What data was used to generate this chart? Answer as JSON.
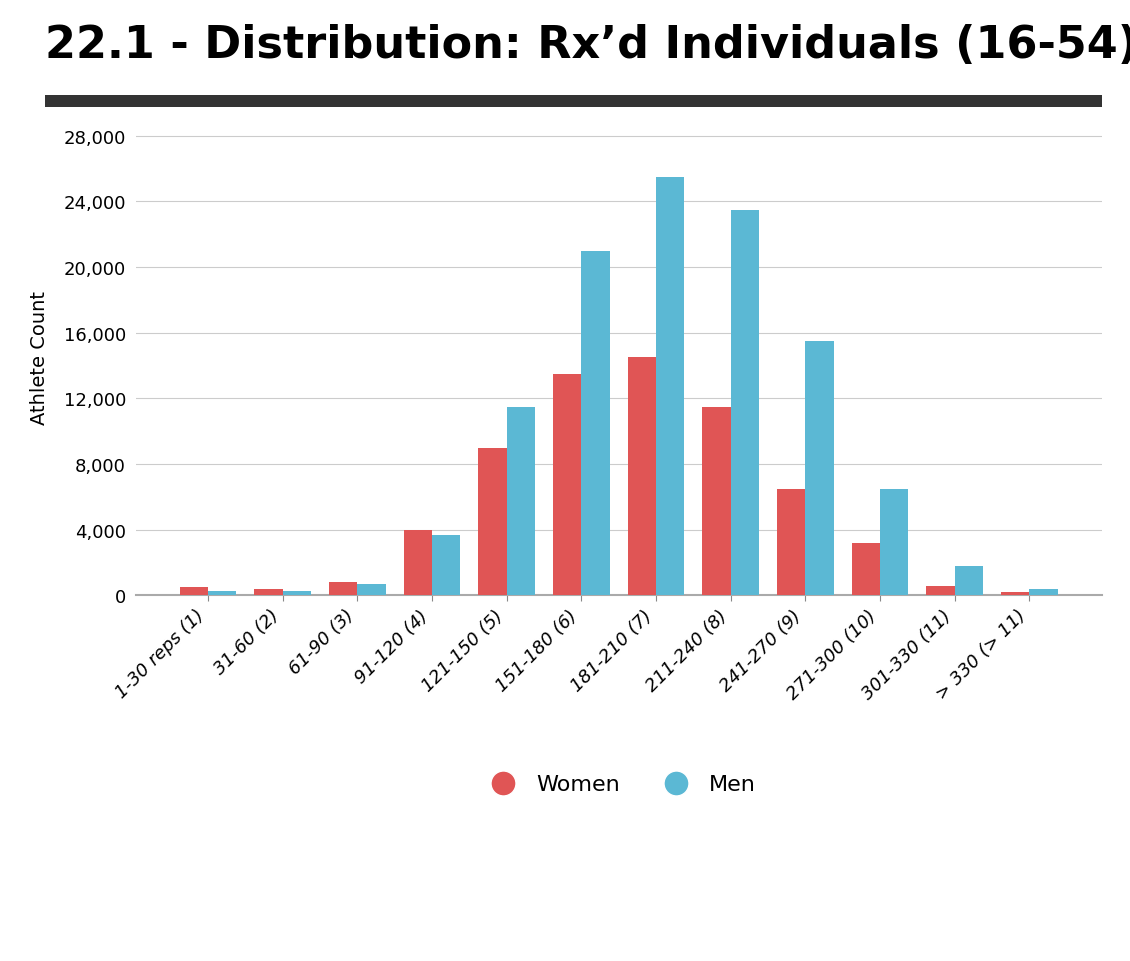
{
  "title": "22.1 - Distribution: Rx’d Individuals (16-54)",
  "ylabel": "Athlete Count",
  "categories": [
    "1-30 reps (1)",
    "31-60 (2)",
    "61-90 (3)",
    "91-120 (4)",
    "121-150 (5)",
    "151-180 (6)",
    "181-210 (7)",
    "211-240 (8)",
    "241-270 (9)",
    "271-300 (10)",
    "301-330 (11)",
    "> 330 (> 11)"
  ],
  "women_values": [
    500,
    400,
    800,
    4000,
    9000,
    13500,
    14500,
    11500,
    6500,
    3200,
    600,
    200
  ],
  "men_values": [
    300,
    300,
    700,
    3700,
    11500,
    21000,
    25500,
    23500,
    15500,
    6500,
    1800,
    400
  ],
  "women_color": "#E05555",
  "men_color": "#5BB8D4",
  "background_color": "#FFFFFF",
  "title_fontsize": 32,
  "ylabel_fontsize": 14,
  "tick_fontsize": 13,
  "ylim": [
    0,
    29000
  ],
  "yticks": [
    0,
    4000,
    8000,
    12000,
    16000,
    20000,
    24000,
    28000
  ],
  "bar_width": 0.38,
  "title_bar_color": "#333333",
  "legend_fontsize": 16
}
